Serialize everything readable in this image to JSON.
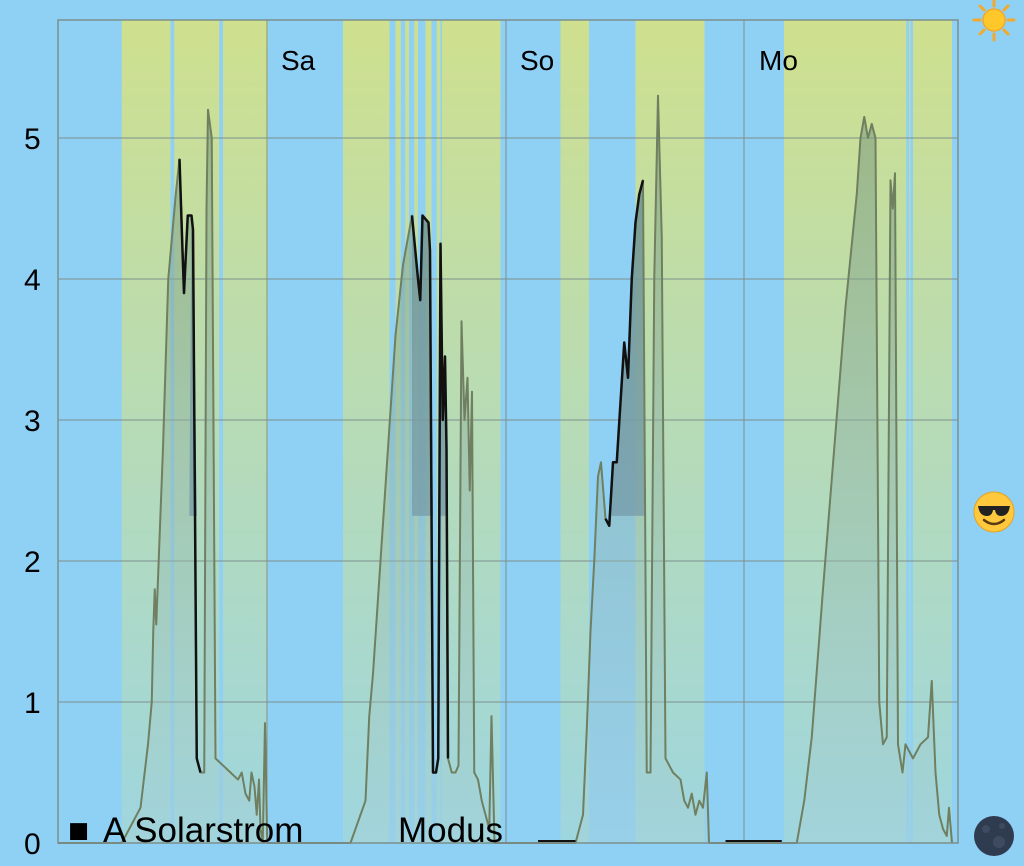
{
  "chart_data": {
    "type": "area",
    "ylim": [
      0,
      5.85
    ],
    "yticks": [
      "0",
      "1",
      "2",
      "3",
      "4",
      "5"
    ],
    "day_labels": [
      "Sa",
      "So",
      "Mo"
    ],
    "grid": true,
    "legend": [
      {
        "marker": "■",
        "label": "A Solarstrom"
      },
      {
        "label": "Modus"
      }
    ],
    "series": [
      {
        "label": "A Solarstrom",
        "color": "#6f7f60",
        "points": [
          [
            0.0,
            0
          ],
          [
            0.085,
            0
          ],
          [
            0.11,
            0.25
          ],
          [
            0.12,
            0.7
          ],
          [
            0.125,
            1.0
          ],
          [
            0.127,
            1.5
          ],
          [
            0.129,
            1.8
          ],
          [
            0.131,
            1.55
          ],
          [
            0.14,
            2.8
          ],
          [
            0.147,
            4.0
          ],
          [
            0.157,
            4.6
          ],
          [
            0.162,
            4.85
          ],
          [
            0.166,
            4.2
          ],
          [
            0.168,
            3.9
          ],
          [
            0.173,
            4.45
          ],
          [
            0.178,
            4.45
          ],
          [
            0.18,
            4.35
          ],
          [
            0.185,
            0.6
          ],
          [
            0.19,
            0.5
          ],
          [
            0.195,
            0.5
          ],
          [
            0.198,
            4.5
          ],
          [
            0.2,
            5.2
          ],
          [
            0.205,
            5.0
          ],
          [
            0.21,
            0.6
          ],
          [
            0.22,
            0.55
          ],
          [
            0.23,
            0.5
          ],
          [
            0.24,
            0.45
          ],
          [
            0.245,
            0.5
          ],
          [
            0.25,
            0.35
          ],
          [
            0.255,
            0.3
          ],
          [
            0.258,
            0.5
          ],
          [
            0.262,
            0.4
          ],
          [
            0.265,
            0.2
          ],
          [
            0.268,
            0.45
          ],
          [
            0.27,
            0.1
          ],
          [
            0.273,
            0
          ],
          [
            0.276,
            0.85
          ],
          [
            0.279,
            0
          ],
          [
            0.39,
            0
          ],
          [
            0.41,
            0.3
          ],
          [
            0.415,
            0.9
          ],
          [
            0.42,
            1.2
          ],
          [
            0.43,
            2.0
          ],
          [
            0.44,
            2.8
          ],
          [
            0.45,
            3.6
          ],
          [
            0.46,
            4.1
          ],
          [
            0.472,
            4.45
          ],
          [
            0.48,
            4.0
          ],
          [
            0.483,
            3.85
          ],
          [
            0.486,
            4.45
          ],
          [
            0.494,
            4.4
          ],
          [
            0.496,
            4.2
          ],
          [
            0.5,
            0.5
          ],
          [
            0.504,
            0.5
          ],
          [
            0.507,
            0.6
          ],
          [
            0.51,
            4.25
          ],
          [
            0.513,
            3.0
          ],
          [
            0.516,
            3.45
          ],
          [
            0.518,
            2.8
          ],
          [
            0.52,
            0.6
          ],
          [
            0.525,
            0.5
          ],
          [
            0.53,
            0.5
          ],
          [
            0.534,
            0.55
          ],
          [
            0.538,
            3.7
          ],
          [
            0.542,
            3.0
          ],
          [
            0.546,
            3.3
          ],
          [
            0.549,
            2.5
          ],
          [
            0.552,
            3.2
          ],
          [
            0.555,
            0.5
          ],
          [
            0.56,
            0.45
          ],
          [
            0.565,
            0.3
          ],
          [
            0.57,
            0.2
          ],
          [
            0.575,
            0.1
          ],
          [
            0.578,
            0.9
          ],
          [
            0.582,
            0
          ],
          [
            0.69,
            0
          ],
          [
            0.7,
            0.2
          ],
          [
            0.705,
            0.8
          ],
          [
            0.71,
            1.5
          ],
          [
            0.715,
            2.0
          ],
          [
            0.72,
            2.6
          ],
          [
            0.724,
            2.7
          ],
          [
            0.73,
            2.3
          ],
          [
            0.735,
            2.25
          ],
          [
            0.74,
            2.7
          ],
          [
            0.745,
            2.7
          ],
          [
            0.755,
            3.55
          ],
          [
            0.76,
            3.3
          ],
          [
            0.765,
            4.0
          ],
          [
            0.77,
            4.4
          ],
          [
            0.775,
            4.6
          ],
          [
            0.78,
            4.7
          ],
          [
            0.785,
            0.5
          ],
          [
            0.79,
            0.5
          ],
          [
            0.795,
            4.0
          ],
          [
            0.8,
            5.3
          ],
          [
            0.805,
            4.3
          ],
          [
            0.81,
            0.6
          ],
          [
            0.82,
            0.5
          ],
          [
            0.83,
            0.45
          ],
          [
            0.835,
            0.3
          ],
          [
            0.84,
            0.25
          ],
          [
            0.845,
            0.35
          ],
          [
            0.85,
            0.2
          ],
          [
            0.855,
            0.3
          ],
          [
            0.86,
            0.25
          ],
          [
            0.865,
            0.5
          ],
          [
            0.868,
            0
          ],
          [
            0.985,
            0
          ],
          [
            0.995,
            0.3
          ],
          [
            1.005,
            0.75
          ],
          [
            1.02,
            1.8
          ],
          [
            1.035,
            2.8
          ],
          [
            1.05,
            3.8
          ],
          [
            1.065,
            4.6
          ],
          [
            1.07,
            5.0
          ],
          [
            1.075,
            5.15
          ],
          [
            1.08,
            5.0
          ],
          [
            1.085,
            5.1
          ],
          [
            1.09,
            5.0
          ],
          [
            1.095,
            1.0
          ],
          [
            1.1,
            0.7
          ],
          [
            1.105,
            0.75
          ],
          [
            1.11,
            4.7
          ],
          [
            1.113,
            4.5
          ],
          [
            1.116,
            4.75
          ],
          [
            1.12,
            0.7
          ],
          [
            1.126,
            0.5
          ],
          [
            1.13,
            0.7
          ],
          [
            1.14,
            0.6
          ],
          [
            1.15,
            0.7
          ],
          [
            1.16,
            0.75
          ],
          [
            1.165,
            1.15
          ],
          [
            1.17,
            0.5
          ],
          [
            1.175,
            0.2
          ],
          [
            1.18,
            0.1
          ],
          [
            1.185,
            0.05
          ],
          [
            1.188,
            0.25
          ],
          [
            1.192,
            0
          ]
        ]
      }
    ],
    "overlay_line": {
      "label": "Modus",
      "color": "#111111",
      "baseline": 2.32,
      "segments": [
        [
          [
            0.162,
            4.85
          ],
          [
            0.166,
            4.2
          ],
          [
            0.168,
            3.9
          ],
          [
            0.173,
            4.45
          ],
          [
            0.178,
            4.45
          ],
          [
            0.18,
            4.35
          ],
          [
            0.185,
            0.6
          ],
          [
            0.19,
            0.5
          ]
        ],
        [
          [
            0.472,
            4.45
          ],
          [
            0.48,
            4.0
          ],
          [
            0.483,
            3.85
          ],
          [
            0.486,
            4.45
          ],
          [
            0.494,
            4.4
          ],
          [
            0.496,
            4.2
          ],
          [
            0.5,
            0.5
          ],
          [
            0.504,
            0.5
          ],
          [
            0.507,
            0.6
          ],
          [
            0.51,
            4.25
          ],
          [
            0.513,
            3.0
          ],
          [
            0.516,
            3.45
          ],
          [
            0.518,
            2.8
          ],
          [
            0.52,
            0.6
          ]
        ],
        [
          [
            0.73,
            2.3
          ],
          [
            0.735,
            2.25
          ],
          [
            0.74,
            2.7
          ],
          [
            0.745,
            2.7
          ],
          [
            0.755,
            3.55
          ],
          [
            0.76,
            3.3
          ],
          [
            0.765,
            4.0
          ],
          [
            0.77,
            4.4
          ],
          [
            0.775,
            4.6
          ],
          [
            0.78,
            4.7
          ]
        ]
      ],
      "shaded_ranges": [
        [
          0.175,
          0.19
        ],
        [
          0.472,
          0.522
        ],
        [
          0.738,
          0.782
        ]
      ]
    },
    "sun_bands": [
      [
        0.085,
        0.15
      ],
      [
        0.155,
        0.215
      ],
      [
        0.22,
        0.28
      ],
      [
        0.38,
        0.442
      ],
      [
        0.45,
        0.457
      ],
      [
        0.463,
        0.468
      ],
      [
        0.475,
        0.48
      ],
      [
        0.49,
        0.498
      ],
      [
        0.505,
        0.51
      ],
      [
        0.512,
        0.59
      ],
      [
        0.67,
        0.708
      ],
      [
        0.77,
        0.862
      ],
      [
        0.968,
        1.131
      ],
      [
        1.135,
        1.136
      ],
      [
        1.14,
        1.192
      ]
    ],
    "low_bars": [
      [
        0.64,
        0.69
      ],
      [
        0.89,
        0.965
      ]
    ]
  },
  "icons": {
    "top": "sun-icon",
    "middle": "smiling-face-with-sunglasses-icon",
    "bottom": "new-moon-icon"
  }
}
